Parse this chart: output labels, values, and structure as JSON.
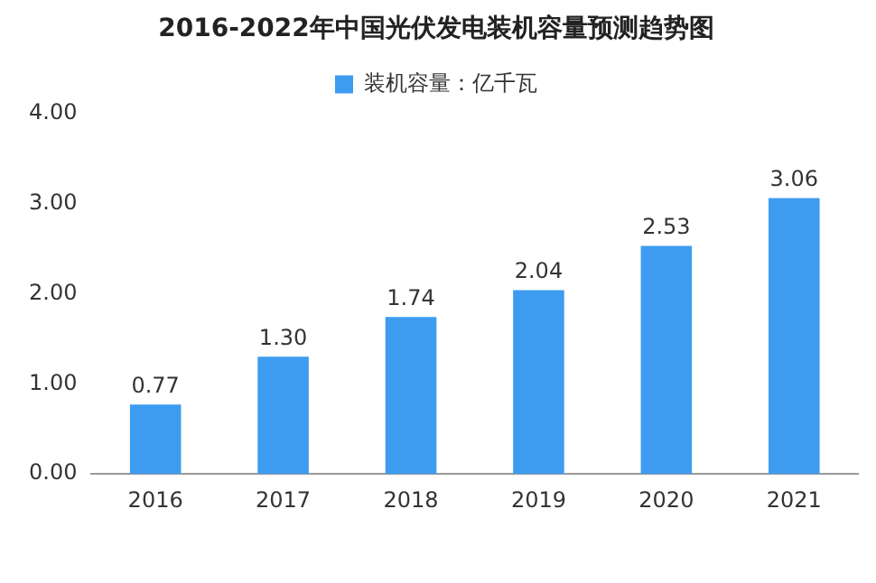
{
  "chart_data": {
    "type": "bar",
    "title": "2016-2022年中国光伏发电装机容量预测趋势图",
    "categories": [
      "2016",
      "2017",
      "2018",
      "2019",
      "2020",
      "2021"
    ],
    "series": [
      {
        "name": "装机容量：亿千瓦",
        "color": "#3d9cf0",
        "values": [
          0.77,
          1.3,
          1.74,
          2.04,
          2.53,
          3.06
        ]
      }
    ],
    "ylim": [
      0,
      4
    ],
    "yticks": [
      {
        "value": 0,
        "label": "0.00"
      },
      {
        "value": 1,
        "label": "1.00"
      },
      {
        "value": 2,
        "label": "2.00"
      },
      {
        "value": 3,
        "label": "3.00"
      },
      {
        "value": 4,
        "label": "4.00"
      }
    ],
    "value_labels": [
      "0.77",
      "1.30",
      "1.74",
      "2.04",
      "2.53",
      "3.06"
    ],
    "legend": "top",
    "grid": false
  }
}
